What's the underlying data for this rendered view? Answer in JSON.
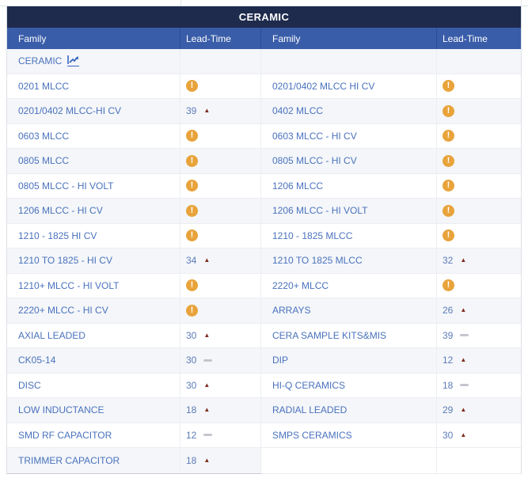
{
  "table": {
    "title": "CERAMIC",
    "columns": {
      "family_left": "Family",
      "leadtime_left": "Lead-Time",
      "family_right": "Family",
      "leadtime_right": "Lead-Time"
    },
    "rows": [
      {
        "family1": "CERAMIC",
        "family1_icon": "chart-line-icon",
        "lead1": {
          "type": "empty"
        },
        "family2": "",
        "lead2": {
          "type": "empty"
        }
      },
      {
        "family1": "0201 MLCC",
        "lead1": {
          "type": "alert"
        },
        "family2": "0201/0402 MLCC HI CV",
        "lead2": {
          "type": "alert"
        }
      },
      {
        "family1": "0201/0402 MLCC-HI CV",
        "lead1": {
          "type": "value",
          "value": "39",
          "trend": "up"
        },
        "family2": "0402 MLCC",
        "lead2": {
          "type": "alert"
        }
      },
      {
        "family1": "0603 MLCC",
        "lead1": {
          "type": "alert"
        },
        "family2": "0603 MLCC - HI CV",
        "lead2": {
          "type": "alert"
        }
      },
      {
        "family1": "0805 MLCC",
        "lead1": {
          "type": "alert"
        },
        "family2": "0805 MLCC - HI CV",
        "lead2": {
          "type": "alert"
        }
      },
      {
        "family1": "0805 MLCC - HI VOLT",
        "lead1": {
          "type": "alert"
        },
        "family2": "1206 MLCC",
        "lead2": {
          "type": "alert"
        }
      },
      {
        "family1": "1206 MLCC - HI CV",
        "lead1": {
          "type": "alert"
        },
        "family2": "1206 MLCC - HI VOLT",
        "lead2": {
          "type": "alert"
        }
      },
      {
        "family1": "1210 - 1825 HI CV",
        "lead1": {
          "type": "alert"
        },
        "family2": "1210 - 1825 MLCC",
        "lead2": {
          "type": "alert"
        }
      },
      {
        "family1": "1210 TO 1825 - HI CV",
        "lead1": {
          "type": "value",
          "value": "34",
          "trend": "up"
        },
        "family2": "1210 TO 1825 MLCC",
        "lead2": {
          "type": "value",
          "value": "32",
          "trend": "up"
        }
      },
      {
        "family1": "1210+ MLCC - HI VOLT",
        "lead1": {
          "type": "alert"
        },
        "family2": "2220+ MLCC",
        "lead2": {
          "type": "alert"
        }
      },
      {
        "family1": "2220+ MLCC - HI CV",
        "lead1": {
          "type": "alert"
        },
        "family2": "ARRAYS",
        "lead2": {
          "type": "value",
          "value": "26",
          "trend": "up"
        }
      },
      {
        "family1": "AXIAL LEADED",
        "lead1": {
          "type": "value",
          "value": "30",
          "trend": "up"
        },
        "family2": "CERA SAMPLE KITS&MIS",
        "lead2": {
          "type": "value",
          "value": "39",
          "trend": "flat"
        }
      },
      {
        "family1": "CK05-14",
        "lead1": {
          "type": "value",
          "value": "30",
          "trend": "flat"
        },
        "family2": "DIP",
        "lead2": {
          "type": "value",
          "value": "12",
          "trend": "up"
        }
      },
      {
        "family1": "DISC",
        "lead1": {
          "type": "value",
          "value": "30",
          "trend": "up"
        },
        "family2": "HI-Q CERAMICS",
        "lead2": {
          "type": "value",
          "value": "18",
          "trend": "flat"
        }
      },
      {
        "family1": "LOW INDUCTANCE",
        "lead1": {
          "type": "value",
          "value": "18",
          "trend": "up"
        },
        "family2": "RADIAL LEADED",
        "lead2": {
          "type": "value",
          "value": "29",
          "trend": "up"
        }
      },
      {
        "family1": "SMD RF CAPACITOR",
        "lead1": {
          "type": "value",
          "value": "12",
          "trend": "flat"
        },
        "family2": "SMPS CERAMICS",
        "lead2": {
          "type": "value",
          "value": "30",
          "trend": "up"
        }
      },
      {
        "family1": "TRIMMER CAPACITOR",
        "lead1": {
          "type": "value",
          "value": "18",
          "trend": "up"
        },
        "family2": "",
        "lead2": {
          "type": "empty"
        }
      }
    ]
  },
  "icons": {
    "alert": "exclamation-circle",
    "trend_up": "up-triangle",
    "trend_flat": "flat-dash",
    "ceramic_link": "chart-line"
  },
  "colors": {
    "title_bar_bg": "#1e2b4d",
    "header_bg": "#3a5da9",
    "family_link": "#4a72bd",
    "lead_value": "#5d7bb9",
    "alert_orange": "#e8a33a",
    "trend_up_maroon": "#7e2d1f",
    "trend_flat_gray": "#c3c7cd",
    "alt_row_bg": "#f4f6f9"
  }
}
